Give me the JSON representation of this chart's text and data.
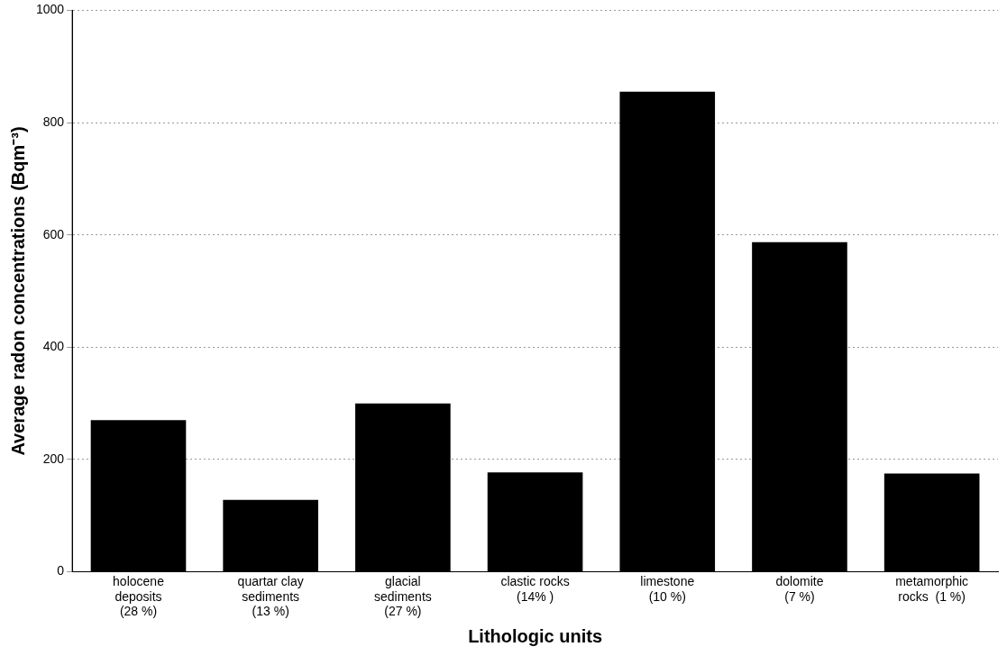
{
  "chart_data": {
    "type": "bar",
    "xlabel": "Lithologic units",
    "ylabel": "Average radon concentrations (Bqm⁻³)",
    "categories": [
      "holocene\ndeposits\n(28 %)",
      "quartar clay\nsediments\n(13 %)",
      "glacial\nsediments\n(27 %)",
      "clastic rocks\n(14% )",
      "limestone\n(10 %)",
      "dolomite\n(7 %)",
      "metamorphic\nrocks  (1 %)"
    ],
    "values": [
      270,
      128,
      300,
      177,
      855,
      587,
      175
    ],
    "color": "#000000",
    "ylim": [
      0,
      1000
    ],
    "yticks": [
      0,
      200,
      400,
      600,
      800,
      1000
    ],
    "grid": "y"
  }
}
